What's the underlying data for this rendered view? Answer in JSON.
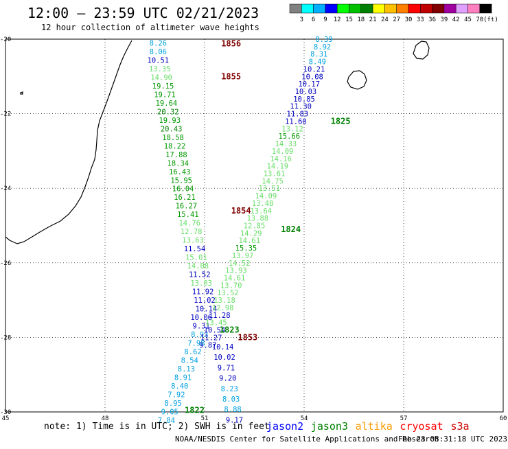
{
  "header": {
    "title": "12:00 – 23:59 UTC 02/21/2023",
    "subtitle": "12 hour collection of altimeter wave heights"
  },
  "legend": {
    "unit_label": "(ft)",
    "colors": [
      "#808080",
      "#00ffff",
      "#00b0ff",
      "#0000ff",
      "#00ff00",
      "#00c000",
      "#008000",
      "#ffff00",
      "#ffc000",
      "#ff8000",
      "#ff0000",
      "#c00000",
      "#800000",
      "#a000a0",
      "#e0a0ff",
      "#ff80c0",
      "#000000"
    ],
    "labels": [
      "3",
      "6",
      "9",
      "12",
      "15",
      "18",
      "21",
      "24",
      "27",
      "30",
      "33",
      "36",
      "39",
      "42",
      "45",
      "70"
    ]
  },
  "map": {
    "lon_range": [
      45,
      60
    ],
    "lat_range": [
      -30,
      -20
    ],
    "x_ticks": [
      "45",
      "48",
      "51",
      "54",
      "57",
      "60"
    ],
    "y_ticks": [
      "-20",
      "-22",
      "-24",
      "-26",
      "-28",
      "-30"
    ],
    "grid": "dotted"
  },
  "tracks": [
    {
      "pass_label": "1856",
      "pass_color": "#800000",
      "pass_lon": 51.8,
      "pass_lat": -20.12
    },
    {
      "pass_label": "1855",
      "pass_color": "#800000",
      "pass_lon": 51.8,
      "pass_lat": -21.0
    },
    {
      "pass_label": "1825",
      "pass_color": "#008000",
      "pass_lon": 55.1,
      "pass_lat": -22.2
    },
    {
      "pass_label": "1854",
      "pass_color": "#800000",
      "pass_lon": 52.1,
      "pass_lat": -24.6
    },
    {
      "pass_label": "1824",
      "pass_color": "#008000",
      "pass_lon": 53.6,
      "pass_lat": -25.1
    },
    {
      "pass_label": "1823",
      "pass_color": "#008000",
      "pass_lon": 51.75,
      "pass_lat": -27.8
    },
    {
      "pass_label": "1853",
      "pass_color": "#800000",
      "pass_lon": 52.3,
      "pass_lat": -28.0
    },
    {
      "pass_label": "1822",
      "pass_color": "#008000",
      "pass_lon": 50.7,
      "pass_lat": -29.95
    }
  ],
  "values": [
    {
      "text": "8.26",
      "color": "#00a0e0",
      "lon": 49.6,
      "lat": -20.1
    },
    {
      "text": "8.06",
      "color": "#00a0e0",
      "lon": 49.6,
      "lat": -20.33
    },
    {
      "text": "10.51",
      "color": "#0000c0",
      "lon": 49.6,
      "lat": -20.56
    },
    {
      "text": "13.35",
      "color": "#66dd66",
      "lon": 49.65,
      "lat": -20.79
    },
    {
      "text": "14.90",
      "color": "#66dd66",
      "lon": 49.7,
      "lat": -21.02
    },
    {
      "text": "19.15",
      "color": "#009900",
      "lon": 49.75,
      "lat": -21.25
    },
    {
      "text": "19.71",
      "color": "#009900",
      "lon": 49.8,
      "lat": -21.48
    },
    {
      "text": "19.64",
      "color": "#009900",
      "lon": 49.85,
      "lat": -21.71
    },
    {
      "text": "20.32",
      "color": "#008000",
      "lon": 49.9,
      "lat": -21.94
    },
    {
      "text": "19.93",
      "color": "#009900",
      "lon": 49.95,
      "lat": -22.17
    },
    {
      "text": "20.43",
      "color": "#008000",
      "lon": 50.0,
      "lat": -22.4
    },
    {
      "text": "18.58",
      "color": "#009900",
      "lon": 50.05,
      "lat": -22.63
    },
    {
      "text": "18.22",
      "color": "#009900",
      "lon": 50.1,
      "lat": -22.86
    },
    {
      "text": "17.88",
      "color": "#009900",
      "lon": 50.15,
      "lat": -23.09
    },
    {
      "text": "18.34",
      "color": "#009900",
      "lon": 50.2,
      "lat": -23.32
    },
    {
      "text": "16.43",
      "color": "#009900",
      "lon": 50.25,
      "lat": -23.55
    },
    {
      "text": "15.95",
      "color": "#009900",
      "lon": 50.3,
      "lat": -23.78
    },
    {
      "text": "16.04",
      "color": "#009900",
      "lon": 50.35,
      "lat": -24.01
    },
    {
      "text": "16.21",
      "color": "#009900",
      "lon": 50.4,
      "lat": -24.24
    },
    {
      "text": "16.27",
      "color": "#009900",
      "lon": 50.45,
      "lat": -24.47
    },
    {
      "text": "15.41",
      "color": "#009900",
      "lon": 50.5,
      "lat": -24.7
    },
    {
      "text": "14.76",
      "color": "#66dd66",
      "lon": 50.55,
      "lat": -24.93
    },
    {
      "text": "12.78",
      "color": "#66dd66",
      "lon": 50.6,
      "lat": -25.16
    },
    {
      "text": "13.63",
      "color": "#66dd66",
      "lon": 50.65,
      "lat": -25.39
    },
    {
      "text": "11.54",
      "color": "#0000c0",
      "lon": 50.7,
      "lat": -25.62
    },
    {
      "text": "15.01",
      "color": "#66dd66",
      "lon": 50.75,
      "lat": -25.85
    },
    {
      "text": "14.08",
      "color": "#66dd66",
      "lon": 50.8,
      "lat": -26.08
    },
    {
      "text": "11.52",
      "color": "#0000c0",
      "lon": 50.85,
      "lat": -26.31
    },
    {
      "text": "13.03",
      "color": "#66dd66",
      "lon": 50.9,
      "lat": -26.54
    },
    {
      "text": "11.92",
      "color": "#0000c0",
      "lon": 50.95,
      "lat": -26.77
    },
    {
      "text": "11.02",
      "color": "#0000c0",
      "lon": 51.0,
      "lat": -27.0
    },
    {
      "text": "10.14",
      "color": "#0000c0",
      "lon": 51.05,
      "lat": -27.23
    },
    {
      "text": "10.06",
      "color": "#0000c0",
      "lon": 50.9,
      "lat": -27.46
    },
    {
      "text": "9.31",
      "color": "#0000c0",
      "lon": 50.9,
      "lat": -27.69
    },
    {
      "text": "8.93",
      "color": "#00a0e0",
      "lon": 50.85,
      "lat": -27.92
    },
    {
      "text": "7.98",
      "color": "#00a0e0",
      "lon": 50.75,
      "lat": -28.15
    },
    {
      "text": "8.62",
      "color": "#00a0e0",
      "lon": 50.65,
      "lat": -28.38
    },
    {
      "text": "8.54",
      "color": "#00a0e0",
      "lon": 50.55,
      "lat": -28.61
    },
    {
      "text": "8.13",
      "color": "#00a0e0",
      "lon": 50.45,
      "lat": -28.84
    },
    {
      "text": "8.91",
      "color": "#00a0e0",
      "lon": 50.35,
      "lat": -29.07
    },
    {
      "text": "8.40",
      "color": "#00a0e0",
      "lon": 50.25,
      "lat": -29.3
    },
    {
      "text": "7.92",
      "color": "#00a0e0",
      "lon": 50.15,
      "lat": -29.53
    },
    {
      "text": "8.95",
      "color": "#00a0e0",
      "lon": 50.05,
      "lat": -29.76
    },
    {
      "text": "9.05",
      "color": "#00a0e0",
      "lon": 49.95,
      "lat": -29.99
    },
    {
      "text": "7.84",
      "color": "#00a0e0",
      "lon": 49.85,
      "lat": -30.22
    },
    {
      "text": "8.39",
      "color": "#00a0e0",
      "lon": 54.6,
      "lat": -20.0
    },
    {
      "text": "8.92",
      "color": "#00a0e0",
      "lon": 54.55,
      "lat": -20.2
    },
    {
      "text": "8.31",
      "color": "#00a0e0",
      "lon": 54.45,
      "lat": -20.4
    },
    {
      "text": "8.49",
      "color": "#00a0e0",
      "lon": 54.4,
      "lat": -20.6
    },
    {
      "text": "10.21",
      "color": "#0000c0",
      "lon": 54.3,
      "lat": -20.8
    },
    {
      "text": "10.08",
      "color": "#0000c0",
      "lon": 54.25,
      "lat": -21.0
    },
    {
      "text": "10.17",
      "color": "#0000c0",
      "lon": 54.15,
      "lat": -21.2
    },
    {
      "text": "10.03",
      "color": "#0000c0",
      "lon": 54.05,
      "lat": -21.4
    },
    {
      "text": "10.85",
      "color": "#0000c0",
      "lon": 54.0,
      "lat": -21.6
    },
    {
      "text": "11.30",
      "color": "#0000c0",
      "lon": 53.9,
      "lat": -21.8
    },
    {
      "text": "11.83",
      "color": "#0000c0",
      "lon": 53.8,
      "lat": -22.0
    },
    {
      "text": "11.60",
      "color": "#0000c0",
      "lon": 53.75,
      "lat": -22.2
    },
    {
      "text": "13.12",
      "color": "#66dd66",
      "lon": 53.65,
      "lat": -22.4
    },
    {
      "text": "15.66",
      "color": "#009900",
      "lon": 53.55,
      "lat": -22.6
    },
    {
      "text": "14.33",
      "color": "#66dd66",
      "lon": 53.45,
      "lat": -22.8
    },
    {
      "text": "14.09",
      "color": "#66dd66",
      "lon": 53.35,
      "lat": -23.0
    },
    {
      "text": "14.16",
      "color": "#66dd66",
      "lon": 53.3,
      "lat": -23.2
    },
    {
      "text": "14.19",
      "color": "#66dd66",
      "lon": 53.2,
      "lat": -23.4
    },
    {
      "text": "13.61",
      "color": "#66dd66",
      "lon": 53.1,
      "lat": -23.6
    },
    {
      "text": "14.75",
      "color": "#66dd66",
      "lon": 53.05,
      "lat": -23.8
    },
    {
      "text": "13.51",
      "color": "#66dd66",
      "lon": 52.95,
      "lat": -24.0
    },
    {
      "text": "14.09",
      "color": "#66dd66",
      "lon": 52.85,
      "lat": -24.2
    },
    {
      "text": "13.48",
      "color": "#66dd66",
      "lon": 52.75,
      "lat": -24.4
    },
    {
      "text": "13.64",
      "color": "#66dd66",
      "lon": 52.7,
      "lat": -24.6
    },
    {
      "text": "13.88",
      "color": "#66dd66",
      "lon": 52.6,
      "lat": -24.8
    },
    {
      "text": "12.85",
      "color": "#66dd66",
      "lon": 52.5,
      "lat": -25.0
    },
    {
      "text": "14.29",
      "color": "#66dd66",
      "lon": 52.4,
      "lat": -25.2
    },
    {
      "text": "14.61",
      "color": "#66dd66",
      "lon": 52.35,
      "lat": -25.4
    },
    {
      "text": "15.35",
      "color": "#009900",
      "lon": 52.25,
      "lat": -25.6
    },
    {
      "text": "13.97",
      "color": "#66dd66",
      "lon": 52.15,
      "lat": -25.8
    },
    {
      "text": "14.52",
      "color": "#66dd66",
      "lon": 52.05,
      "lat": -26.0
    },
    {
      "text": "13.93",
      "color": "#66dd66",
      "lon": 51.95,
      "lat": -26.2
    },
    {
      "text": "14.61",
      "color": "#66dd66",
      "lon": 51.9,
      "lat": -26.4
    },
    {
      "text": "13.70",
      "color": "#66dd66",
      "lon": 51.8,
      "lat": -26.6
    },
    {
      "text": "13.52",
      "color": "#66dd66",
      "lon": 51.7,
      "lat": -26.8
    },
    {
      "text": "13.18",
      "color": "#66dd66",
      "lon": 51.6,
      "lat": -27.0
    },
    {
      "text": "12.98",
      "color": "#66dd66",
      "lon": 51.55,
      "lat": -27.2
    },
    {
      "text": "11.28",
      "color": "#0000c0",
      "lon": 51.45,
      "lat": -27.4
    },
    {
      "text": "13.45",
      "color": "#66dd66",
      "lon": 51.35,
      "lat": -27.6
    },
    {
      "text": "10.54",
      "color": "#0000c0",
      "lon": 51.3,
      "lat": -27.8
    },
    {
      "text": "11.27",
      "color": "#0000c0",
      "lon": 51.2,
      "lat": -28.0
    },
    {
      "text": "9.87",
      "color": "#0000c0",
      "lon": 51.1,
      "lat": -28.2
    },
    {
      "text": "10.14",
      "color": "#0000c0",
      "lon": 51.55,
      "lat": -28.25
    },
    {
      "text": "10.02",
      "color": "#0000c0",
      "lon": 51.6,
      "lat": -28.53
    },
    {
      "text": "9.71",
      "color": "#0000c0",
      "lon": 51.65,
      "lat": -28.81
    },
    {
      "text": "9.20",
      "color": "#0000c0",
      "lon": 51.7,
      "lat": -29.09
    },
    {
      "text": "8.23",
      "color": "#00a0e0",
      "lon": 51.75,
      "lat": -29.37
    },
    {
      "text": "8.03",
      "color": "#00a0e0",
      "lon": 51.8,
      "lat": -29.65
    },
    {
      "text": "8.88",
      "color": "#00a0e0",
      "lon": 51.85,
      "lat": -29.93
    },
    {
      "text": "9.17",
      "color": "#0000c0",
      "lon": 51.9,
      "lat": -30.21
    }
  ],
  "footer": {
    "note": "note: 1) Time is in UTC; 2) SWH is in feet",
    "satellites": [
      {
        "name": "jason2",
        "color": "#0000ff"
      },
      {
        "name": "jason3",
        "color": "#008000"
      },
      {
        "name": "altika",
        "color": "#ff9900"
      },
      {
        "name": "cryosat",
        "color": "#ff0000"
      },
      {
        "name": "s3a",
        "color": "#cc0000"
      }
    ],
    "credit": "NOAA/NESDIS Center for Satellite Applications and Research",
    "timestamp": "Feb 23 08:31:18 UTC 2023"
  }
}
